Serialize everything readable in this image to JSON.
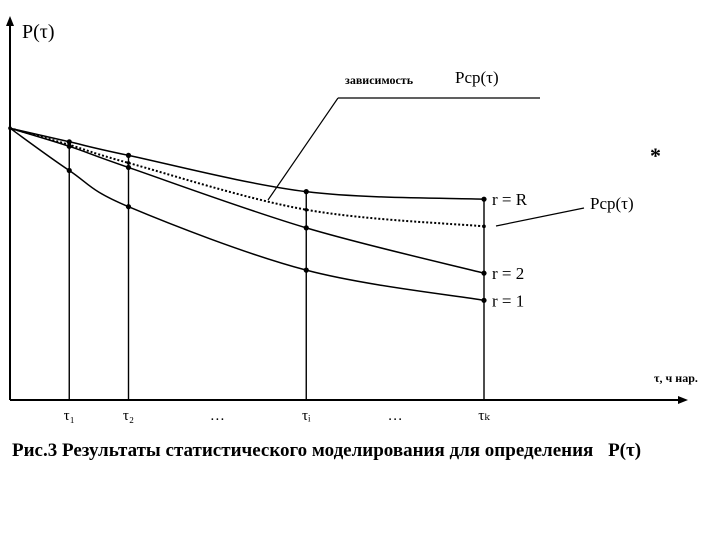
{
  "caption": {
    "prefix": "Рис.3 Результаты статистического моделирования для определения",
    "symbol": "P(τ)"
  },
  "chart_data": {
    "type": "line",
    "y_axis_label": "P(τ)",
    "x_axis_label": "τ, ч нар.",
    "x_ticks": [
      "τ₁",
      "τ₂",
      "…",
      "τᵢ",
      "…",
      "τₖ"
    ],
    "series": [
      {
        "name": "r = R",
        "style": "solid",
        "x": [
          0,
          1,
          2,
          5,
          8
        ],
        "values": [
          0.9,
          0.855,
          0.81,
          0.69,
          0.665
        ]
      },
      {
        "name": "r = 2",
        "style": "solid",
        "x": [
          0,
          1,
          2,
          5,
          8
        ],
        "values": [
          0.9,
          0.84,
          0.77,
          0.57,
          0.42
        ]
      },
      {
        "name": "r = 1",
        "style": "solid",
        "x": [
          0,
          1,
          2,
          5,
          8
        ],
        "values": [
          0.9,
          0.76,
          0.64,
          0.43,
          0.33
        ]
      },
      {
        "name": "Pср(τ)",
        "style": "dotted",
        "x": [
          0,
          1,
          2,
          5,
          8
        ],
        "values": [
          0.9,
          0.845,
          0.785,
          0.63,
          0.575
        ]
      }
    ],
    "xlim": [
      0,
      8
    ],
    "ylim": [
      0,
      1
    ],
    "annotations": {
      "dependence_label": "зависимость",
      "dependence_symbol": "Рср(τ)",
      "side_symbol": "Рср(τ)",
      "stray_mark": "*"
    },
    "colors": {
      "line": "#000000",
      "background": "#ffffff"
    }
  }
}
